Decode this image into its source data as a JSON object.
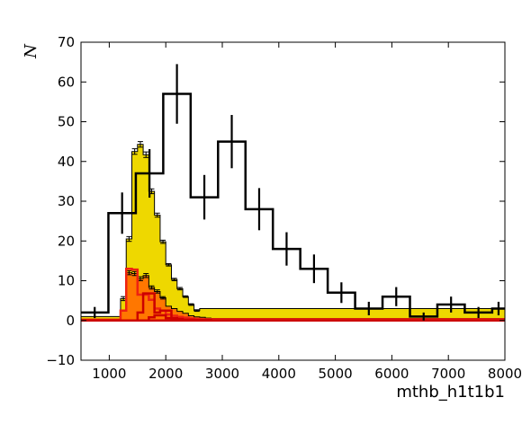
{
  "chart_data": {
    "type": "bar",
    "xlabel": "mthb_h1t1b1",
    "ylabel": "N",
    "xlim": [
      500,
      8000
    ],
    "ylim": [
      -10,
      70
    ],
    "x_ticks": [
      1000,
      2000,
      3000,
      4000,
      5000,
      6000,
      7000,
      8000
    ],
    "y_ticks": [
      -10,
      0,
      10,
      20,
      30,
      40,
      50,
      60,
      70
    ],
    "grid": false,
    "colors": {
      "yellow": "#eed800",
      "orange": "#ff7700",
      "red": "#ee2211",
      "darkred": "#cc0000",
      "black": "#000000"
    },
    "fine_bins": {
      "edges": [
        500,
        600,
        700,
        800,
        900,
        1000,
        1100,
        1200,
        1300,
        1400,
        1500,
        1600,
        1700,
        1800,
        1900,
        2000,
        2100,
        2200,
        2300,
        2400,
        2500,
        2600,
        2700,
        2800,
        2900,
        3000,
        3100,
        3200,
        3300,
        3400,
        3500,
        3600,
        3700,
        3800,
        3900,
        4000,
        4100,
        4200,
        4300,
        4400,
        4500,
        4600,
        4700,
        4800,
        4900,
        5000,
        5100,
        5200,
        5300,
        5400,
        5500,
        5600,
        5700,
        5800,
        5900,
        6000,
        6100,
        6200,
        6300,
        6400,
        6500,
        6600,
        6700,
        6800,
        6900,
        7000,
        7100,
        7200,
        7300,
        7400,
        7500,
        7600,
        7700,
        7800,
        7900,
        8000
      ]
    },
    "series": [
      {
        "name": "",
        "color": "yellow",
        "style": "stacked-fill",
        "values": [
          1.0,
          1.0,
          1.0,
          1.0,
          1.0,
          1.0,
          1.0,
          5.5,
          20.5,
          42.5,
          44.3,
          41.7,
          32.5,
          26.5,
          19.8,
          14.0,
          10.3,
          8.0,
          6.0,
          4.0,
          2.5,
          3.0,
          3.0,
          3.0,
          3.0,
          3.0,
          3.0,
          3.0,
          3.0,
          3.0,
          3.0,
          3.0,
          3.0,
          3.0,
          3.0,
          3.0,
          3.0,
          3.0,
          3.0,
          3.0,
          3.0,
          3.0,
          3.0,
          3.0,
          3.0,
          3.0,
          3.0,
          3.0,
          3.0,
          3.0,
          3.0,
          3.0,
          3.0,
          3.0,
          3.0,
          3.0,
          3.0,
          3.0,
          3.0,
          3.0,
          3.0,
          3.0,
          3.0,
          3.0,
          3.0,
          3.0,
          3.0,
          3.0,
          3.0,
          3.0,
          3.0,
          3.0,
          3.0,
          3.0,
          3.0
        ],
        "errors": [
          0,
          0,
          0,
          0,
          0,
          0,
          0,
          0.5,
          0.6,
          0.7,
          0.7,
          0.7,
          0.6,
          0.5,
          0.4,
          0.3,
          0.3,
          0.3,
          0.2,
          0.2,
          0.2,
          0,
          0,
          0,
          0,
          0,
          0,
          0,
          0,
          0,
          0,
          0,
          0,
          0,
          0,
          0,
          0,
          0,
          0,
          0,
          0,
          0,
          0,
          0,
          0,
          0,
          0,
          0,
          0,
          0,
          0,
          0,
          0,
          0,
          0,
          0,
          0,
          0,
          0,
          0,
          0,
          0,
          0,
          0,
          0,
          0,
          0,
          0,
          0,
          0,
          0,
          0,
          0,
          0,
          0
        ]
      },
      {
        "name": "",
        "color": "orange",
        "style": "stacked-fill",
        "values": [
          0.3,
          0.3,
          0.3,
          0.3,
          0.3,
          0.3,
          0.3,
          2.5,
          12.0,
          11.8,
          10.5,
          11.3,
          8.3,
          7.3,
          5.7,
          3.6,
          3.0,
          2.3,
          1.8,
          1.2,
          0.9,
          0.8,
          0.6,
          0.5,
          0.5,
          0.5,
          0.5,
          0.5,
          0.5,
          0.5,
          0.5,
          0.5,
          0.5,
          0.5,
          0.5,
          0.5,
          0.5,
          0.5,
          0.5,
          0.5,
          0.5,
          0.5,
          0.5,
          0.5,
          0.5,
          0.5,
          0.5,
          0.5,
          0.5,
          0.5,
          0.5,
          0.5,
          0.5,
          0.5,
          0.5,
          0.5,
          0.5,
          0.5,
          0.5,
          0.5,
          0.5,
          0.5,
          0.5,
          0.5,
          0.5,
          0.5,
          0.5,
          0.5,
          0.5,
          0.5,
          0.5,
          0.5,
          0.5,
          0.5,
          0.5
        ],
        "errors": [
          0,
          0,
          0,
          0,
          0,
          0,
          0,
          0,
          0.5,
          0.5,
          0.5,
          0.5,
          0.4,
          0.4,
          0.3,
          0,
          0,
          0,
          0,
          0,
          0,
          0,
          0,
          0,
          0,
          0,
          0,
          0,
          0,
          0,
          0,
          0,
          0,
          0,
          0,
          0,
          0,
          0,
          0,
          0,
          0,
          0,
          0,
          0,
          0,
          0,
          0,
          0,
          0,
          0,
          0,
          0,
          0,
          0,
          0,
          0,
          0,
          0,
          0,
          0,
          0,
          0,
          0,
          0,
          0,
          0,
          0,
          0,
          0,
          0,
          0,
          0,
          0,
          0,
          0
        ]
      },
      {
        "name": "",
        "color": "red",
        "style": "step",
        "values": [
          0.2,
          0.2,
          0.2,
          0.2,
          0.2,
          0.2,
          0.2,
          2.5,
          13.0,
          12.8,
          6.5,
          6.5,
          5.2,
          3.0,
          2.5,
          1.5,
          1.2,
          0.9,
          0.7,
          0.5,
          0.4,
          0.3,
          0.3,
          0.3,
          0.3,
          0.3,
          0.3,
          0.3,
          0.3,
          0.3,
          0.3,
          0.3,
          0.3,
          0.3,
          0.3,
          0.3,
          0.3,
          0.3,
          0.3,
          0.3,
          0.3,
          0.3,
          0.3,
          0.3,
          0.3,
          0.3,
          0.3,
          0.3,
          0.3,
          0.3,
          0.3,
          0.3,
          0.3,
          0.3,
          0.3,
          0.3,
          0.3,
          0.3,
          0.3,
          0.3,
          0.3,
          0.3,
          0.3,
          0.3,
          0.3,
          0.3,
          0.3,
          0.3,
          0.3,
          0.3,
          0.3,
          0.3,
          0.3,
          0.3,
          0.3
        ]
      },
      {
        "name": "",
        "color": "darkred",
        "style": "step",
        "values": [
          0,
          0,
          0,
          0,
          0,
          0,
          0,
          0,
          0,
          0,
          2.0,
          6.8,
          6.8,
          2.0,
          2.5,
          2.5,
          0.6,
          0.4,
          0.2,
          0.2,
          0.1,
          0.1,
          0.1,
          0,
          0,
          0,
          0,
          0,
          0,
          0,
          0,
          0,
          0,
          0,
          0,
          0,
          0,
          0,
          0,
          0,
          0,
          0,
          0,
          0,
          0,
          0,
          0,
          0,
          0,
          0,
          0,
          0,
          0,
          0,
          0,
          0,
          0,
          0,
          0,
          0,
          0,
          0,
          0,
          0,
          0,
          0,
          0,
          0,
          0,
          0,
          0,
          0,
          0,
          0,
          0
        ]
      },
      {
        "name": "",
        "color": "darkred",
        "style": "step",
        "values": [
          0,
          0,
          0,
          0,
          0,
          0,
          0,
          0,
          0,
          0,
          0,
          0,
          0.8,
          1.3,
          1.3,
          0.6,
          0.4,
          0.2,
          0.1,
          0,
          0,
          0,
          0,
          0,
          0,
          0,
          0,
          0,
          0,
          0,
          0,
          0,
          0,
          0,
          0,
          0,
          0,
          0,
          0,
          0,
          0,
          0,
          0,
          0,
          0,
          0,
          0,
          0,
          0,
          0,
          0,
          0,
          0,
          0,
          0,
          0,
          0,
          0,
          0,
          0,
          0,
          0,
          0,
          0,
          0,
          0,
          0,
          0,
          0,
          0,
          0,
          0,
          0,
          0,
          0
        ]
      }
    ],
    "data_series": {
      "name": "",
      "color": "black",
      "edges": [
        500,
        985,
        1470,
        1955,
        2440,
        2925,
        3410,
        3895,
        4380,
        4865,
        5350,
        5835,
        6320,
        6805,
        7290,
        7775,
        8000
      ],
      "values": [
        2,
        27,
        37,
        57,
        31,
        45,
        28,
        18,
        13,
        7,
        3,
        6,
        1,
        4,
        2,
        3
      ],
      "errors": [
        1.4,
        5.2,
        6.1,
        7.5,
        5.6,
        6.7,
        5.3,
        4.2,
        3.6,
        2.6,
        1.7,
        2.4,
        1.0,
        2.0,
        1.4,
        1.7
      ]
    }
  }
}
